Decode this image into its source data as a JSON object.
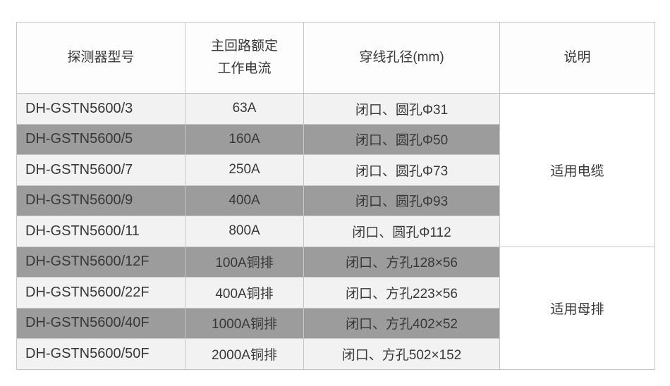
{
  "table": {
    "headers": {
      "model": "探测器型号",
      "current": "主回路额定\n工作电流",
      "hole": "穿线孔径(mm)",
      "note": "说明"
    },
    "rows": [
      {
        "model": "DH-GSTN5600/3",
        "current": "63A",
        "hole": "闭口、圆孔Φ31"
      },
      {
        "model": "DH-GSTN5600/5",
        "current": "160A",
        "hole": "闭口、圆孔Φ50"
      },
      {
        "model": "DH-GSTN5600/7",
        "current": "250A",
        "hole": "闭口、圆孔Φ73"
      },
      {
        "model": "DH-GSTN5600/9",
        "current": "400A",
        "hole": "闭口、圆孔Φ93"
      },
      {
        "model": "DH-GSTN5600/11",
        "current": "800A",
        "hole": "闭口、圆孔Φ112"
      },
      {
        "model": "DH-GSTN5600/12F",
        "current": "100A铜排",
        "hole": "闭口、方孔128×56"
      },
      {
        "model": "DH-GSTN5600/22F",
        "current": "400A铜排",
        "hole": "闭口、方孔223×56"
      },
      {
        "model": "DH-GSTN5600/40F",
        "current": "1000A铜排",
        "hole": "闭口、方孔402×52"
      },
      {
        "model": "DH-GSTN5600/50F",
        "current": "2000A铜排",
        "hole": "闭口、方孔502×152"
      }
    ],
    "notes": [
      {
        "label": "适用电缆"
      },
      {
        "label": "适用母排"
      }
    ]
  },
  "colors": {
    "stripe_gray": "#9c9c9c",
    "stripe_light": "#f2f2f2",
    "border": "#c6c6c6",
    "text": "#383838",
    "note_bg": "#ffffff"
  }
}
